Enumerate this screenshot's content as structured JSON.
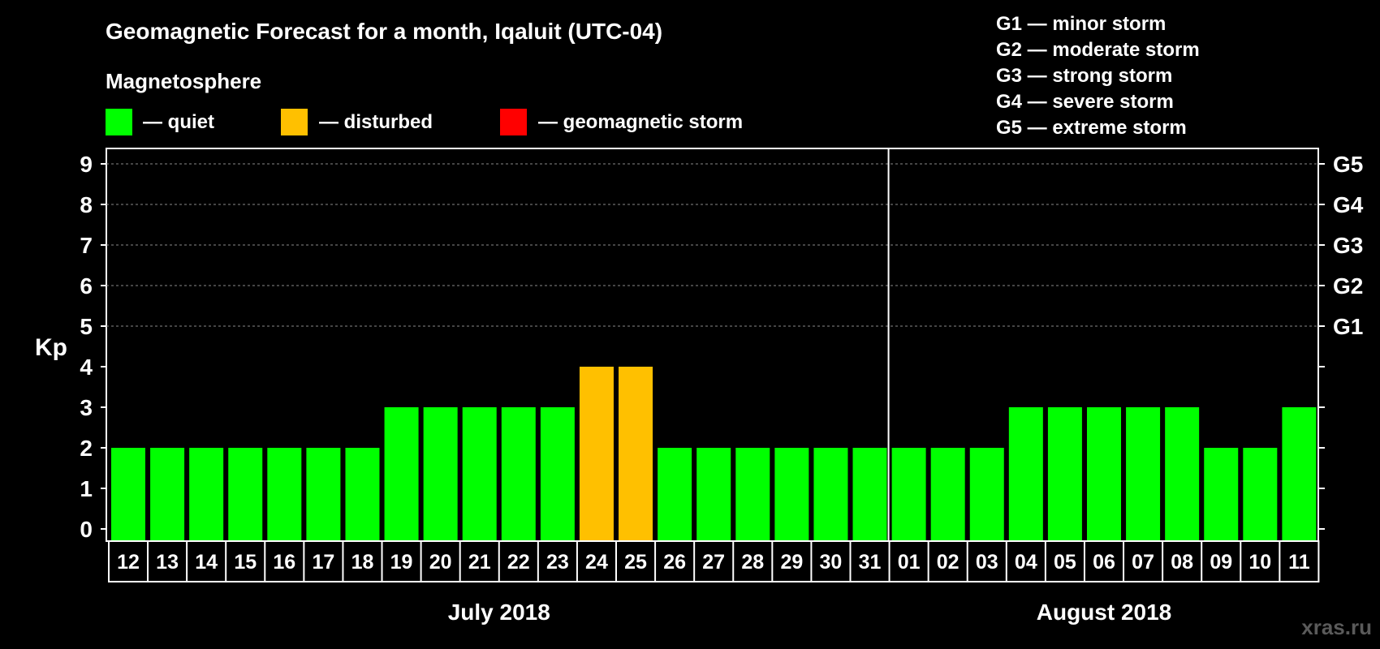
{
  "chart_data": {
    "type": "bar",
    "title": "Geomagnetic Forecast for a month, Iqaluit (UTC-04)",
    "ylabel": "Kp",
    "ylim": [
      0,
      9
    ],
    "yticks": [
      "0",
      "1",
      "2",
      "3",
      "4",
      "5",
      "6",
      "7",
      "8",
      "9"
    ],
    "grid_levels": [
      5,
      6,
      7,
      8,
      9
    ],
    "right_labels": [
      {
        "level": 5,
        "label": "G1"
      },
      {
        "level": 6,
        "label": "G2"
      },
      {
        "level": 7,
        "label": "G3"
      },
      {
        "level": 8,
        "label": "G4"
      },
      {
        "level": 9,
        "label": "G5"
      }
    ],
    "categories": [
      "12",
      "13",
      "14",
      "15",
      "16",
      "17",
      "18",
      "19",
      "20",
      "21",
      "22",
      "23",
      "24",
      "25",
      "26",
      "27",
      "28",
      "29",
      "30",
      "31",
      "01",
      "02",
      "03",
      "04",
      "05",
      "06",
      "07",
      "08",
      "09",
      "10",
      "11"
    ],
    "values": [
      2,
      2,
      2,
      2,
      2,
      2,
      2,
      3,
      3,
      3,
      3,
      3,
      4,
      4,
      2,
      2,
      2,
      2,
      2,
      2,
      2,
      2,
      2,
      3,
      3,
      3,
      3,
      3,
      2,
      2,
      3
    ],
    "months": [
      {
        "label": "July 2018",
        "start": 0,
        "end": 19
      },
      {
        "label": "August 2018",
        "start": 20,
        "end": 30
      }
    ],
    "status_colors": {
      "quiet": "#00ff00",
      "disturbed": "#ffc000",
      "storm": "#ff0000"
    }
  },
  "legend": {
    "heading": "Magnetosphere",
    "items": [
      {
        "label": "— quiet",
        "color": "#00ff00"
      },
      {
        "label": "— disturbed",
        "color": "#ffc000"
      },
      {
        "label": "— geomagnetic storm",
        "color": "#ff0000"
      }
    ]
  },
  "storm_scale": [
    "G1 — minor storm",
    "G2 — moderate storm",
    "G3 — strong storm",
    "G4 — severe storm",
    "G5 — extreme storm"
  ],
  "watermark": "xras.ru"
}
